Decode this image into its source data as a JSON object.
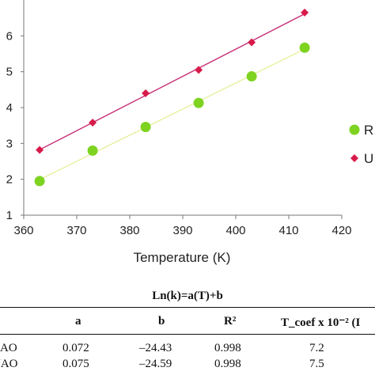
{
  "chart_data": {
    "type": "scatter",
    "xlabel": "Temperature (K)",
    "ylabel": "",
    "xlim": [
      360,
      420
    ],
    "ylim": [
      1,
      7
    ],
    "xticks": [
      "360",
      "370",
      "380",
      "390",
      "400",
      "410",
      "420"
    ],
    "yticks": [
      "1",
      "2",
      "3",
      "4",
      "5",
      "6"
    ],
    "legend_position": "right",
    "grid": false,
    "series": [
      {
        "name": "R",
        "marker": "circle",
        "color": "#7ed321",
        "line_color": "#e9f0a0",
        "x": [
          363,
          373,
          383,
          393,
          403,
          413
        ],
        "y": [
          1.95,
          2.8,
          3.46,
          4.13,
          4.87,
          5.67
        ]
      },
      {
        "name": "U",
        "marker": "diamond",
        "color": "#d81b4a",
        "line_color": "#c7327a",
        "x": [
          363,
          373,
          383,
          393,
          403,
          413
        ],
        "y": [
          2.82,
          3.58,
          4.4,
          5.05,
          5.82,
          6.65
        ]
      }
    ]
  },
  "table": {
    "title": "Ln(k)=a(T)+b",
    "headers": [
      "a",
      "b",
      "R²",
      "T_coef x 10⁻² (I"
    ],
    "rows": [
      {
        "label": "RAO",
        "a": "0.072",
        "b": "–24.43",
        "r2": "0.998",
        "tcoef": "7.2"
      },
      {
        "label": "UAO",
        "a": "0.075",
        "b": "–24.59",
        "r2": "0.998",
        "tcoef": "7.5"
      }
    ]
  }
}
